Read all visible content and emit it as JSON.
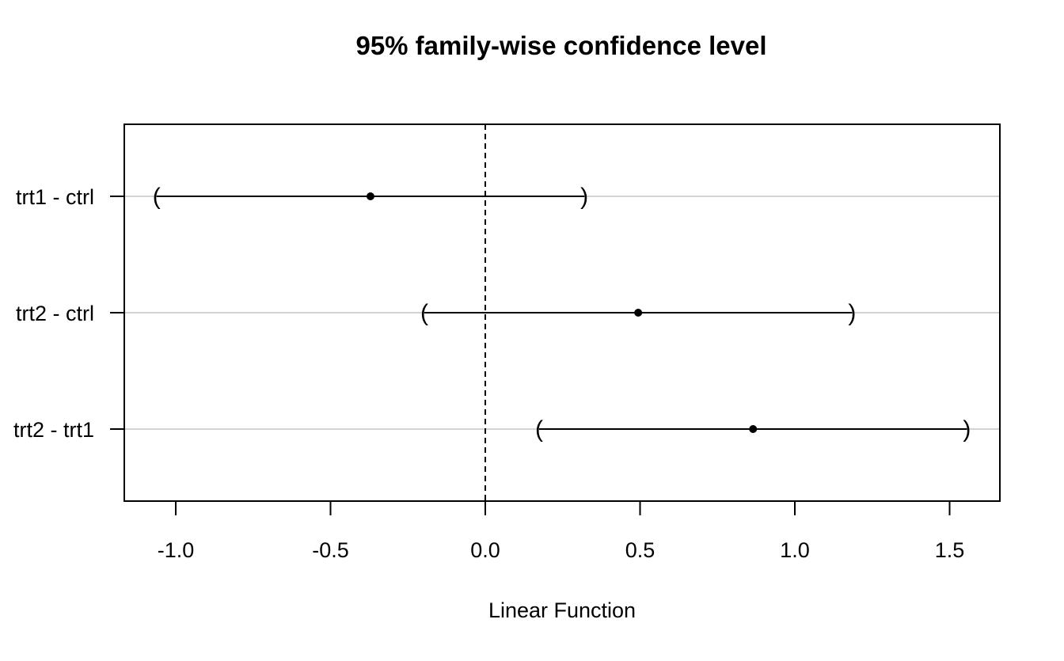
{
  "chart_data": {
    "type": "scatter",
    "title": "95% family-wise confidence level",
    "xlabel": "Linear Function",
    "ylabel": "",
    "xlim": [
      -1.167,
      1.667
    ],
    "x_ticks": [
      -1.0,
      -0.5,
      0.0,
      0.5,
      1.0,
      1.5
    ],
    "x_tick_labels": [
      "-1.0",
      "-0.5",
      "0.0",
      "0.5",
      "1.0",
      "1.5"
    ],
    "reference_line": 0.0,
    "grid": "horizontal",
    "categories": [
      "trt1 - ctrl",
      "trt2 - ctrl",
      "trt2 - trt1"
    ],
    "estimate": [
      -0.371,
      0.494,
      0.865
    ],
    "lower": [
      -1.062,
      -0.197,
      0.174
    ],
    "upper": [
      0.32,
      1.185,
      1.556
    ]
  }
}
